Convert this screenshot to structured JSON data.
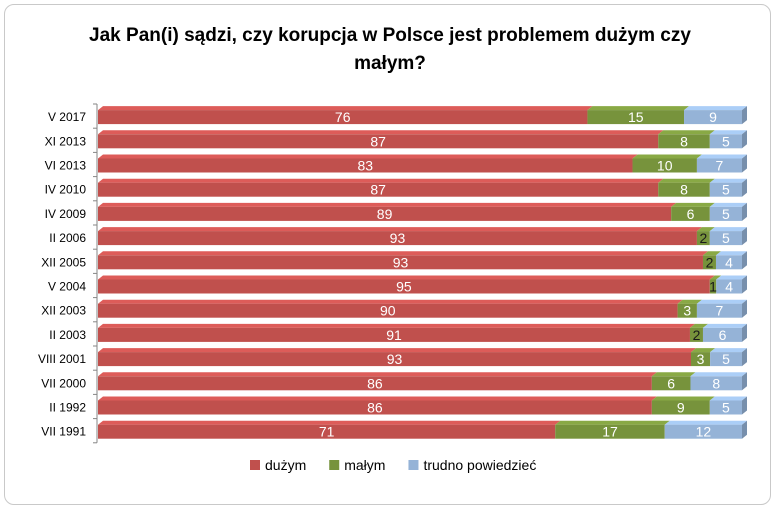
{
  "chart_data": {
    "type": "bar",
    "orientation": "horizontal",
    "stacked": true,
    "percent_stacked": true,
    "title": "Jak Pan(i) sądzi, czy korupcja w Polsce jest problemem dużym czy małym?",
    "categories": [
      "V 2017",
      "XI 2013",
      "VI 2013",
      "IV 2010",
      "IV 2009",
      "II 2006",
      "XII 2005",
      "V 2004",
      "XII 2003",
      "II 2003",
      "VIII 2001",
      "VII 2000",
      "II 1992",
      "VII 1991"
    ],
    "series": [
      {
        "name": "dużym",
        "color": "#c0504d",
        "values": [
          76,
          87,
          83,
          87,
          89,
          93,
          93,
          95,
          90,
          91,
          93,
          86,
          86,
          71
        ]
      },
      {
        "name": "małym",
        "color": "#77933c",
        "values": [
          15,
          8,
          10,
          8,
          6,
          2,
          2,
          1,
          3,
          2,
          3,
          6,
          9,
          17
        ]
      },
      {
        "name": "trudno powiedzieć",
        "color": "#95b3d7",
        "values": [
          9,
          5,
          7,
          5,
          5,
          5,
          4,
          4,
          7,
          6,
          5,
          8,
          5,
          12
        ]
      }
    ],
    "legend_position": "bottom",
    "grid": false
  }
}
